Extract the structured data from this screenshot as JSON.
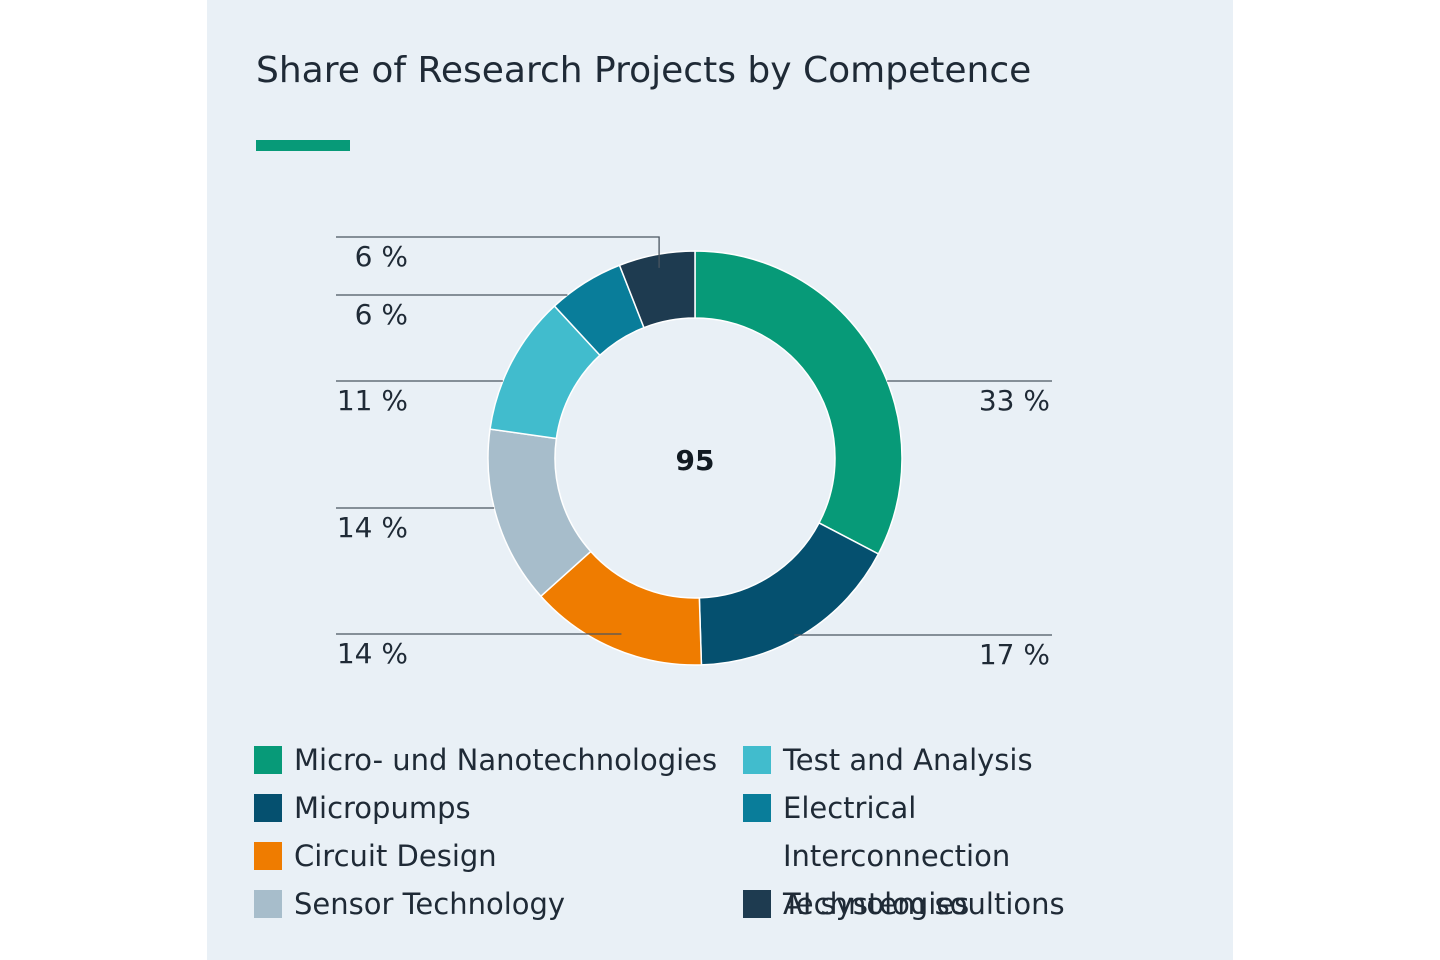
{
  "chart_data": {
    "type": "pie",
    "title": "Share of Research Projects by Competence",
    "center_label": "95",
    "accent_color": "#079a78",
    "categories": [
      "Micro- und Nanotechnologies",
      "Micropumps",
      "Circuit Design",
      "Sensor Technology",
      "Test and Analysis",
      "Electrical Interconnection Technologies",
      "AI system soultions"
    ],
    "values": [
      33,
      17,
      14,
      14,
      11,
      6,
      6
    ],
    "value_labels": [
      "33 %",
      "17 %",
      "14 %",
      "14 %",
      "11 %",
      "6 %",
      "6 %"
    ],
    "colors": [
      "#079a78",
      "#05506f",
      "#ef7c00",
      "#a7bdcb",
      "#41bccd",
      "#097d9a",
      "#1e3b50"
    ],
    "legend_placement": "bottom"
  }
}
